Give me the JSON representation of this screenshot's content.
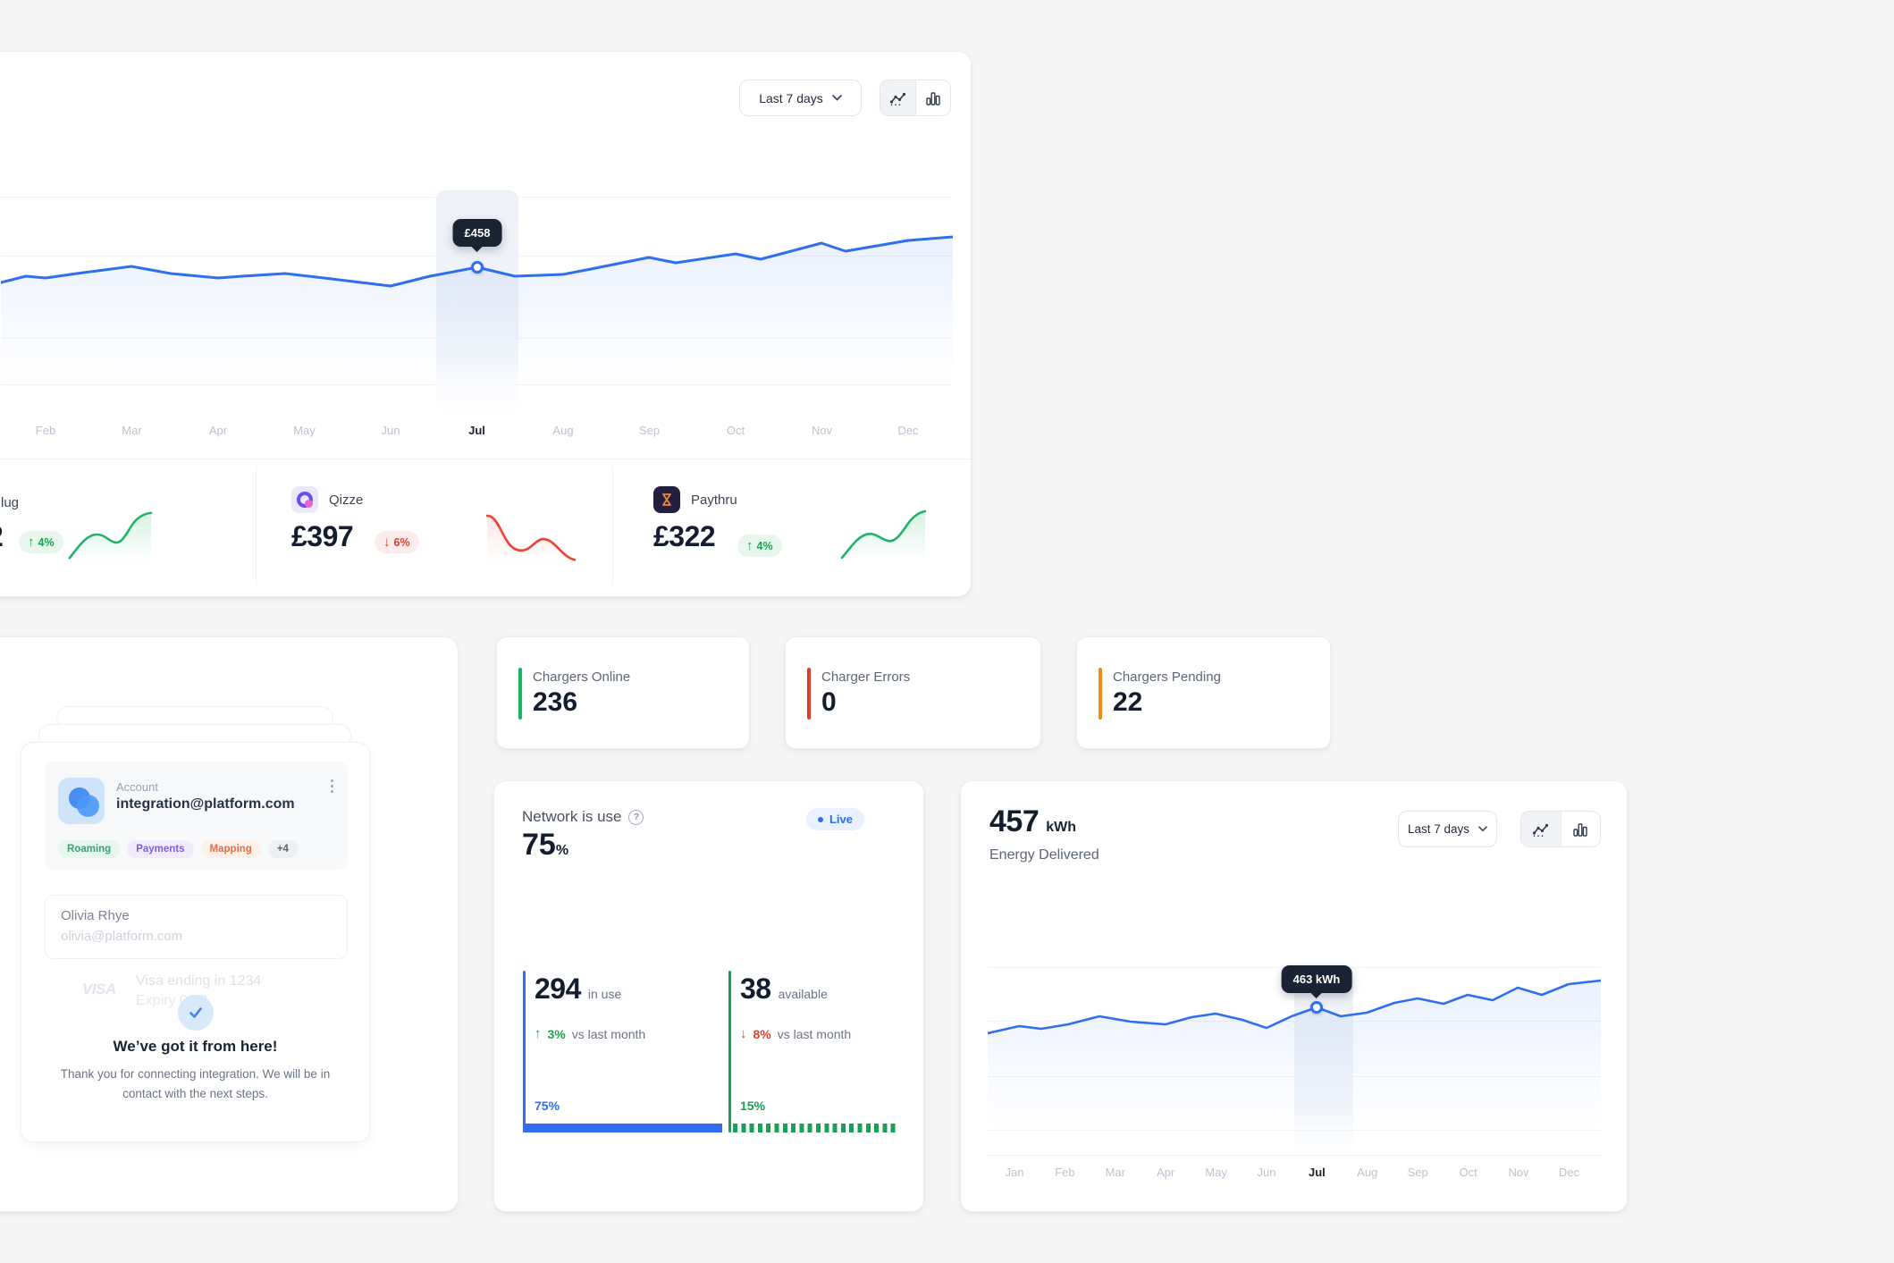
{
  "colors": {
    "primary_blue": "#2e6ef0",
    "green": "#17a449",
    "red": "#e0402f",
    "orange": "#f28b16",
    "tooltip_bg": "#1a2333"
  },
  "revenue_card": {
    "period_label": "Last 7 days",
    "months": [
      "Feb",
      "Mar",
      "Apr",
      "May",
      "Jun",
      "Jul",
      "Aug",
      "Sep",
      "Oct",
      "Nov",
      "Dec"
    ],
    "active_month": "Jul",
    "tooltip_value": "£458",
    "highlighted_point": {
      "month": "Jul",
      "value": "£458"
    },
    "providers": [
      {
        "name": "lug",
        "value": "2",
        "change": "4%",
        "arrow": "↑",
        "direction": "up"
      },
      {
        "name": "Qizze",
        "value": "£397",
        "change": "6%",
        "arrow": "↓",
        "direction": "down"
      },
      {
        "name": "Paythru",
        "value": "£322",
        "change": "4%",
        "arrow": "↑",
        "direction": "up"
      }
    ]
  },
  "charger_stats": [
    {
      "label": "Chargers Online",
      "value": "236",
      "accent": "#1db467"
    },
    {
      "label": "Charger Errors",
      "value": "0",
      "accent": "#e23b2e"
    },
    {
      "label": "Chargers Pending",
      "value": "22",
      "accent": "#f28b16"
    }
  ],
  "account_card": {
    "field_label": "Account",
    "email": "integration@platform.com",
    "tags": [
      {
        "label": "Roaming",
        "fg": "#3d9e6e",
        "bg": "#e7f6ee"
      },
      {
        "label": "Payments",
        "fg": "#7a5cf5",
        "bg": "#f0ecfe"
      },
      {
        "label": "Mapping",
        "fg": "#e0704d",
        "bg": "#fcf0e8"
      },
      {
        "label": "+4",
        "fg": "#5b6472",
        "bg": "#edeff2"
      }
    ],
    "person_name": "Olivia Rhye",
    "person_email": "olivia@platform.com",
    "visa_brand": "VISA",
    "card_info": "Visa ending in 1234",
    "card_expiry": "Expiry 06/2",
    "success_title": "We’ve got it from here!",
    "success_message": "Thank you for connecting integration. We will be in contact with the next steps."
  },
  "network_card": {
    "title": "Network is use",
    "help_glyph": "?",
    "live_label": "Live",
    "percent_value": "75",
    "percent_unit": "%",
    "in_use": {
      "value": "294",
      "label": "in use",
      "arrow": "↑",
      "change": "3%",
      "note": "vs last month",
      "bar_percent": "75%",
      "bar_color": "#2e6ef0"
    },
    "available": {
      "value": "38",
      "label": "available",
      "arrow": "↓",
      "change": "8%",
      "note": "vs last month",
      "bar_percent": "15%",
      "bar_color": "#18a055"
    }
  },
  "energy_card": {
    "value": "457",
    "unit": "kWh",
    "subtitle": "Energy Delivered",
    "period_label": "Last 7 days",
    "tooltip_value": "463 kWh",
    "highlighted_point": {
      "month": "Jul",
      "value_kwh": 463
    },
    "months": [
      "Jan",
      "Feb",
      "Mar",
      "Apr",
      "May",
      "Jun",
      "Jul",
      "Aug",
      "Sep",
      "Oct",
      "Nov",
      "Dec"
    ],
    "active_month": "Jul"
  }
}
